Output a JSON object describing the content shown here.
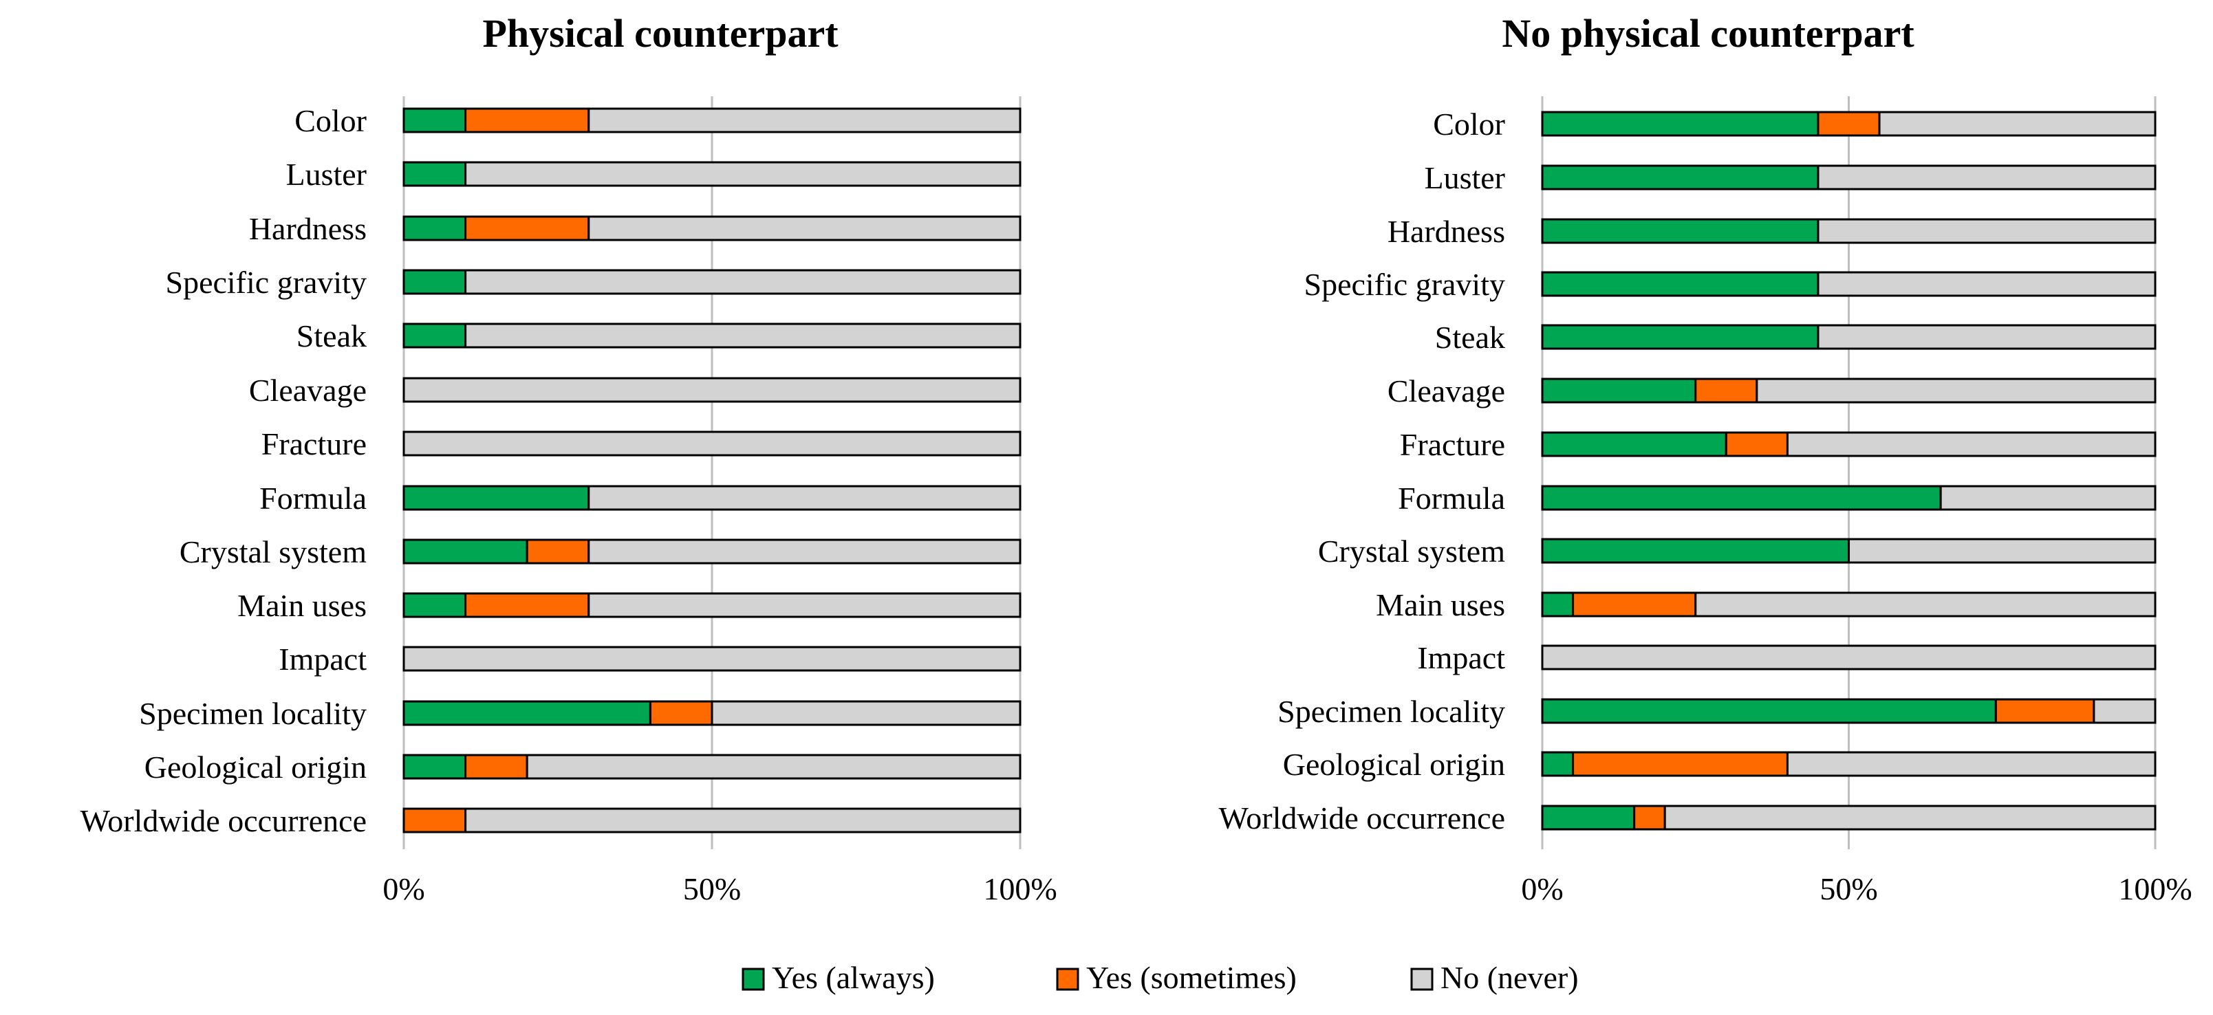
{
  "colors": {
    "always": "#00A651",
    "sometimes": "#FF6A00",
    "never": "#D3D3D3",
    "gridline": "#BFBFBF"
  },
  "chart_data": [
    {
      "type": "bar",
      "orientation": "horizontal",
      "stacked": "percent",
      "title": "Physical counterpart",
      "categories": [
        "Color",
        "Luster",
        "Hardness",
        "Specific gravity",
        "Steak",
        "Cleavage",
        "Fracture",
        "Formula",
        "Crystal system",
        "Main uses",
        "Impact",
        "Specimen locality",
        "Geological origin",
        "Worldwide occurrence"
      ],
      "series": [
        {
          "name": "Yes (always)",
          "key": "always",
          "values": [
            10,
            10,
            10,
            10,
            10,
            0,
            0,
            30,
            20,
            10,
            0,
            40,
            10,
            0
          ]
        },
        {
          "name": "Yes (sometimes)",
          "key": "sometimes",
          "values": [
            20,
            0,
            20,
            0,
            0,
            0,
            0,
            0,
            10,
            20,
            0,
            10,
            10,
            10
          ]
        },
        {
          "name": "No (never)",
          "key": "never",
          "values": [
            70,
            90,
            70,
            90,
            90,
            100,
            100,
            70,
            70,
            70,
            100,
            50,
            80,
            90
          ]
        }
      ],
      "xticks": [
        "0%",
        "50%",
        "100%"
      ],
      "xlim": [
        0,
        100
      ],
      "grid": true
    },
    {
      "type": "bar",
      "orientation": "horizontal",
      "stacked": "percent",
      "title": "No physical counterpart",
      "categories": [
        "Color",
        "Luster",
        "Hardness",
        "Specific gravity",
        "Steak",
        "Cleavage",
        "Fracture",
        "Formula",
        "Crystal system",
        "Main uses",
        "Impact",
        "Specimen locality",
        "Geological origin",
        "Worldwide occurrence"
      ],
      "series": [
        {
          "name": "Yes (always)",
          "key": "always",
          "values": [
            45,
            45,
            45,
            45,
            45,
            25,
            30,
            65,
            50,
            5,
            0,
            74,
            5,
            15
          ]
        },
        {
          "name": "Yes (sometimes)",
          "key": "sometimes",
          "values": [
            10,
            0,
            0,
            0,
            0,
            10,
            10,
            0,
            0,
            20,
            0,
            16,
            35,
            5
          ]
        },
        {
          "name": "No (never)",
          "key": "never",
          "values": [
            45,
            55,
            55,
            55,
            55,
            65,
            60,
            35,
            50,
            75,
            100,
            10,
            60,
            80
          ]
        }
      ],
      "xticks": [
        "0%",
        "50%",
        "100%"
      ],
      "xlim": [
        0,
        100
      ],
      "grid": true
    }
  ],
  "legend": {
    "position": "bottom-center",
    "items": [
      {
        "key": "always",
        "label": "Yes (always)"
      },
      {
        "key": "sometimes",
        "label": "Yes (sometimes)"
      },
      {
        "key": "never",
        "label": "No (never)"
      }
    ]
  }
}
